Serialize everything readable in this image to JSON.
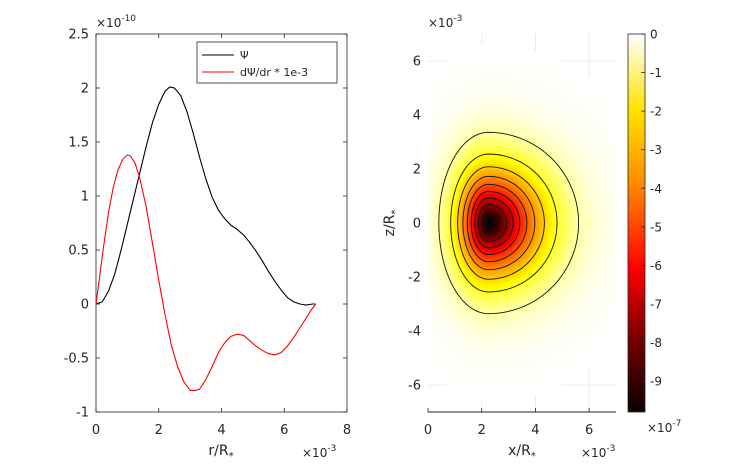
{
  "chart_data": [
    {
      "type": "line",
      "xlabel": "r/R",
      "xlabel_sub": "*",
      "x_exponent": "×10",
      "x_exponent_power": "-3",
      "y_exponent": "×10",
      "y_exponent_power": "-10",
      "xlim": [
        0,
        8
      ],
      "ylim": [
        -1,
        2.5
      ],
      "x_ticks": [
        0,
        2,
        4,
        6,
        8
      ],
      "x_tick_labels": [
        "0",
        "2",
        "4",
        "6",
        "8"
      ],
      "y_ticks": [
        -1,
        -0.5,
        0,
        0.5,
        1,
        1.5,
        2,
        2.5
      ],
      "y_tick_labels": [
        "-1",
        "-0.5",
        "0",
        "0.5",
        "1",
        "1.5",
        "2",
        "2.5"
      ],
      "legend": {
        "position": "top-right",
        "entries": [
          "Ψ",
          "dΨ/dr * 1e-3"
        ]
      },
      "series": [
        {
          "name": "Ψ",
          "color": "#000000",
          "x": [
            0,
            0.2,
            0.4,
            0.6,
            0.8,
            1.0,
            1.2,
            1.4,
            1.6,
            1.8,
            2.0,
            2.2,
            2.35,
            2.5,
            2.7,
            2.9,
            3.1,
            3.3,
            3.5,
            3.7,
            3.9,
            4.1,
            4.3,
            4.5,
            4.7,
            4.9,
            5.1,
            5.3,
            5.5,
            5.7,
            5.9,
            6.1,
            6.3,
            6.5,
            6.7,
            6.9,
            7.0
          ],
          "values": [
            0,
            0.02,
            0.12,
            0.28,
            0.5,
            0.74,
            0.98,
            1.22,
            1.46,
            1.68,
            1.85,
            1.97,
            2.01,
            2.0,
            1.93,
            1.78,
            1.58,
            1.36,
            1.16,
            0.99,
            0.87,
            0.79,
            0.73,
            0.69,
            0.64,
            0.57,
            0.49,
            0.4,
            0.3,
            0.21,
            0.13,
            0.06,
            0.02,
            0.0,
            -0.01,
            0.0,
            0.0
          ]
        },
        {
          "name": "dΨ/dr * 1e-3",
          "color": "#ff0000",
          "x": [
            0,
            0.1,
            0.25,
            0.4,
            0.55,
            0.7,
            0.85,
            1.0,
            1.1,
            1.25,
            1.4,
            1.6,
            1.8,
            2.0,
            2.2,
            2.4,
            2.6,
            2.8,
            3.0,
            3.15,
            3.3,
            3.5,
            3.7,
            3.9,
            4.1,
            4.3,
            4.5,
            4.7,
            4.9,
            5.1,
            5.3,
            5.5,
            5.7,
            5.9,
            6.1,
            6.3,
            6.5,
            6.7,
            6.85,
            7.0
          ],
          "values": [
            0,
            0.22,
            0.55,
            0.85,
            1.08,
            1.24,
            1.34,
            1.38,
            1.37,
            1.3,
            1.16,
            0.9,
            0.56,
            0.22,
            -0.1,
            -0.38,
            -0.58,
            -0.72,
            -0.8,
            -0.8,
            -0.79,
            -0.7,
            -0.58,
            -0.45,
            -0.36,
            -0.3,
            -0.28,
            -0.29,
            -0.34,
            -0.39,
            -0.43,
            -0.46,
            -0.47,
            -0.45,
            -0.39,
            -0.31,
            -0.22,
            -0.13,
            -0.06,
            0.0
          ]
        }
      ]
    },
    {
      "type": "heatmap",
      "xlabel": "x/R",
      "xlabel_sub": "*",
      "ylabel": "z/R",
      "ylabel_sub": "*",
      "x_exponent": "×10",
      "x_exponent_power": "-3",
      "y_exponent": "×10",
      "y_exponent_power": "-3",
      "xlim": [
        0,
        7
      ],
      "ylim": [
        -7,
        7
      ],
      "x_ticks": [
        0,
        2,
        4,
        6
      ],
      "x_tick_labels": [
        "0",
        "2",
        "4",
        "6"
      ],
      "y_ticks": [
        -6,
        -4,
        -2,
        0,
        2,
        4,
        6
      ],
      "y_tick_labels": [
        "-6",
        "-4",
        "-2",
        "0",
        "2",
        "4",
        "6"
      ],
      "field": {
        "center_x": 2.25,
        "center_z": 0,
        "min_value": -9.8,
        "outer_radius": 7.0
      },
      "contour_levels": [
        -0.7,
        -1.7,
        -2.7,
        -3.7,
        -4.7,
        -5.7,
        -6.7,
        -7.7,
        -8.7,
        -9.5
      ],
      "colorbar": {
        "ticks": [
          0,
          -1,
          -2,
          -3,
          -4,
          -5,
          -6,
          -7,
          -8,
          -9
        ],
        "tick_labels": [
          "0",
          "-1",
          "-2",
          "-3",
          "-4",
          "-5",
          "-6",
          "-7",
          "-8",
          "-9"
        ],
        "range": [
          -9.8,
          0
        ],
        "exponent": "×10",
        "exponent_power": "-7",
        "colormap": "hot"
      }
    }
  ]
}
